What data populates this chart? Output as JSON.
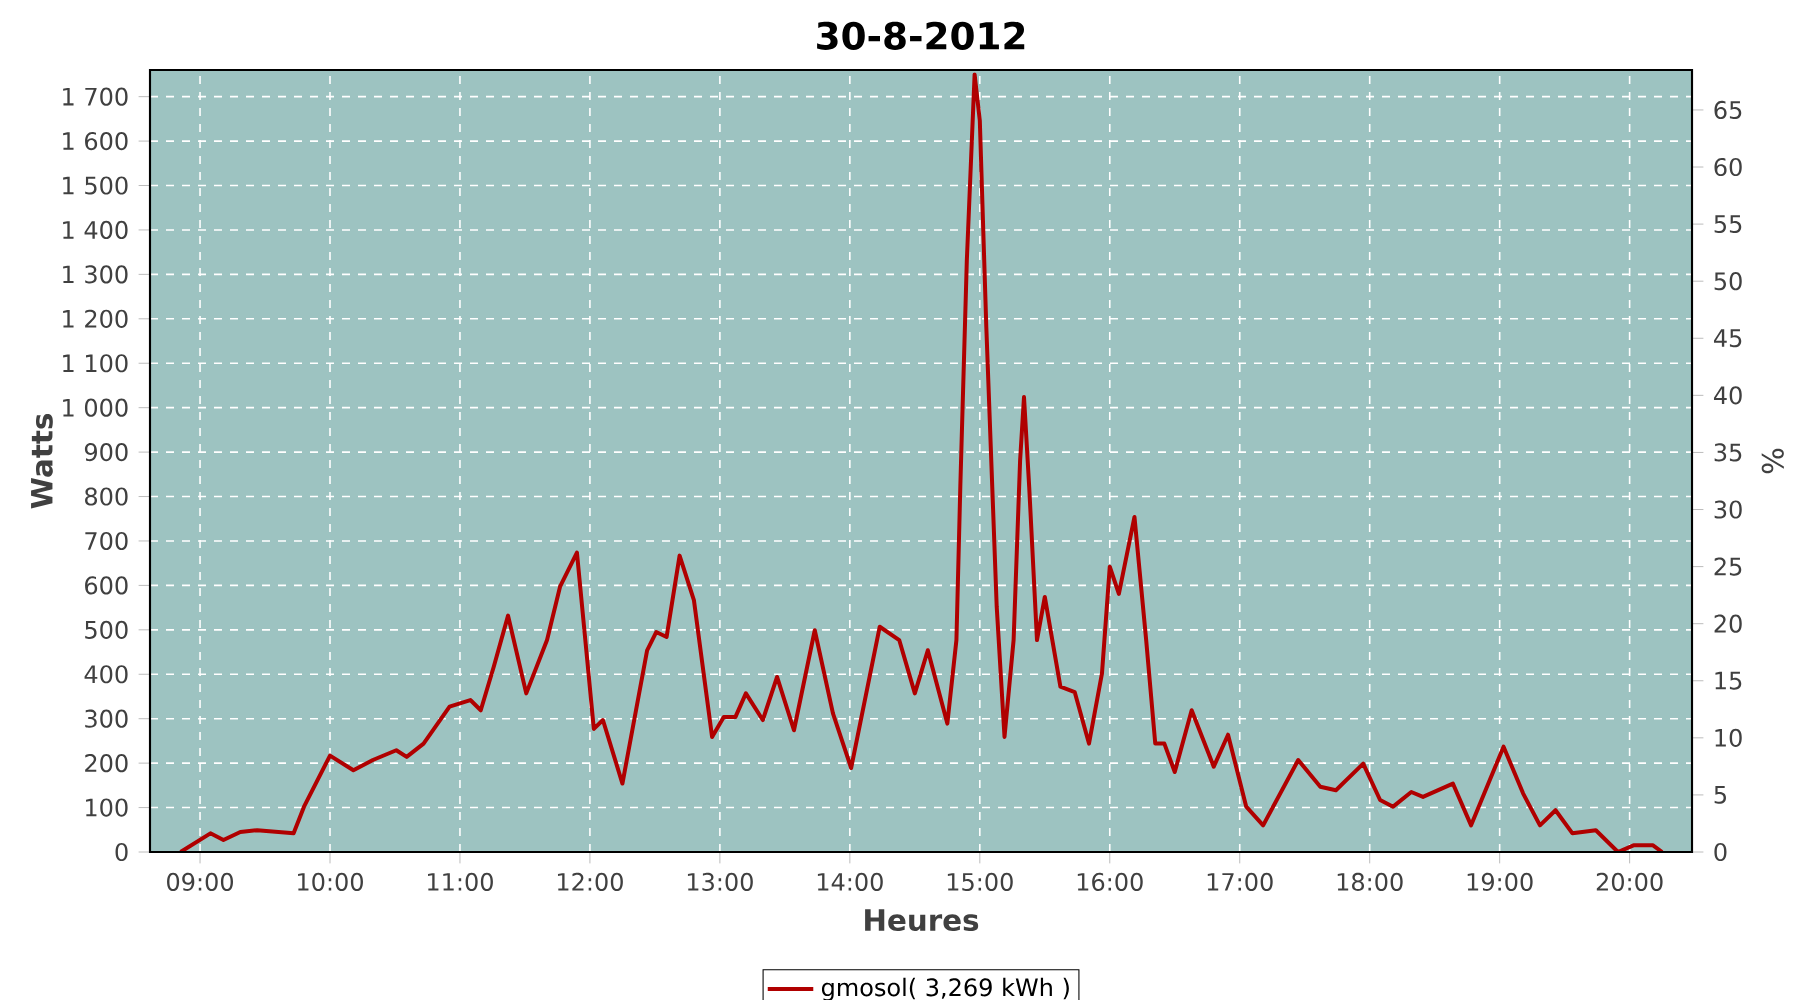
{
  "chart_data": {
    "type": "line",
    "title": "30-8-2012",
    "xlabel": "Heures",
    "ylabel": "Watts",
    "y2label": "%",
    "x": [
      8.85,
      9.08,
      9.18,
      9.31,
      9.44,
      9.72,
      9.8,
      10.0,
      10.18,
      10.33,
      10.51,
      10.59,
      10.72,
      10.92,
      11.08,
      11.16,
      11.26,
      11.37,
      11.51,
      11.67,
      11.77,
      11.9,
      11.96,
      12.03,
      12.1,
      12.25,
      12.44,
      12.51,
      12.59,
      12.69,
      12.8,
      12.94,
      13.03,
      13.12,
      13.2,
      13.33,
      13.44,
      13.57,
      13.73,
      13.87,
      14.01,
      14.23,
      14.38,
      14.5,
      14.6,
      14.75,
      14.82,
      14.85,
      14.9,
      14.96,
      15.0,
      15.05,
      15.13,
      15.19,
      15.26,
      15.31,
      15.34,
      15.38,
      15.44,
      15.5,
      15.62,
      15.73,
      15.84,
      15.94,
      16.0,
      16.07,
      16.19,
      16.28,
      16.35,
      16.42,
      16.5,
      16.63,
      16.8,
      16.91,
      17.05,
      17.18,
      17.45,
      17.62,
      17.74,
      17.95,
      18.08,
      18.18,
      18.32,
      18.41,
      18.64,
      18.78,
      19.03,
      19.18,
      19.31,
      19.43,
      19.56,
      19.74,
      19.91,
      20.03,
      20.18,
      20.25
    ],
    "series": [
      {
        "name": "gmosol( 3,269 kWh )",
        "color": "#b00000",
        "values": [
          0,
          42,
          27,
          45,
          49,
          42,
          102,
          217,
          184,
          207,
          229,
          214,
          244,
          327,
          342,
          319,
          417,
          532,
          357,
          477,
          597,
          674,
          491,
          277,
          297,
          154,
          454,
          495,
          484,
          667,
          567,
          259,
          304,
          304,
          357,
          297,
          394,
          274,
          499,
          312,
          189,
          507,
          477,
          357,
          454,
          289,
          477,
          823,
          1331,
          1750,
          1646,
          1181,
          552,
          259,
          477,
          881,
          1024,
          822,
          477,
          574,
          372,
          360,
          244,
          402,
          642,
          581,
          754,
          477,
          244,
          244,
          180,
          319,
          192,
          264,
          102,
          60,
          207,
          147,
          139,
          199,
          117,
          102,
          135,
          124,
          154,
          60,
          237,
          132,
          60,
          94,
          42,
          49,
          0,
          15,
          15,
          0
        ]
      }
    ],
    "xlim": [
      8.615,
      20.48
    ],
    "xticks": [
      {
        "value": 9,
        "label": "09:00"
      },
      {
        "value": 10,
        "label": "10:00"
      },
      {
        "value": 11,
        "label": "11:00"
      },
      {
        "value": 12,
        "label": "12:00"
      },
      {
        "value": 13,
        "label": "13:00"
      },
      {
        "value": 14,
        "label": "14:00"
      },
      {
        "value": 15,
        "label": "15:00"
      },
      {
        "value": 16,
        "label": "16:00"
      },
      {
        "value": 17,
        "label": "17:00"
      },
      {
        "value": 18,
        "label": "18:00"
      },
      {
        "value": 19,
        "label": "19:00"
      },
      {
        "value": 20,
        "label": "20:00"
      }
    ],
    "ylim": [
      0,
      1760
    ],
    "yticks": [
      0,
      100,
      200,
      300,
      400,
      500,
      600,
      700,
      800,
      900,
      {
        "value": 1000,
        "label": "1 000"
      },
      {
        "value": 1100,
        "label": "1 100"
      },
      {
        "value": 1200,
        "label": "1 200"
      },
      {
        "value": 1300,
        "label": "1 300"
      },
      {
        "value": 1400,
        "label": "1 400"
      },
      {
        "value": 1500,
        "label": "1 500"
      },
      {
        "value": 1600,
        "label": "1 600"
      },
      {
        "value": 1700,
        "label": "1 700"
      }
    ],
    "y2lim": [
      0,
      68.5
    ],
    "y2ticks": [
      0,
      5,
      10,
      15,
      20,
      25,
      30,
      35,
      40,
      45,
      50,
      55,
      60,
      65
    ],
    "grid": true,
    "legend": "bottom",
    "line_style": "solid",
    "marker": "none"
  }
}
